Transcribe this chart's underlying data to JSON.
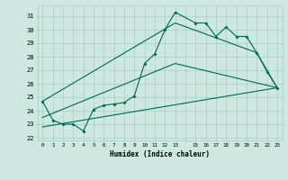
{
  "xlabel": "Humidex (Indice chaleur)",
  "bg_color": "#cce8e0",
  "grid_color": "#a8cec4",
  "line_color": "#006655",
  "xlim": [
    -0.5,
    23.5
  ],
  "ylim": [
    21.8,
    31.8
  ],
  "line1_x": [
    0,
    1,
    2,
    3,
    4,
    5,
    6,
    7,
    8,
    9,
    10,
    11,
    12,
    13,
    15,
    16,
    17,
    18,
    19,
    20,
    21,
    22,
    23
  ],
  "line1_y": [
    24.7,
    23.3,
    23.0,
    23.0,
    22.5,
    24.1,
    24.4,
    24.5,
    24.6,
    25.1,
    27.5,
    28.2,
    30.0,
    31.3,
    30.5,
    30.5,
    29.5,
    30.2,
    29.5,
    29.5,
    28.3,
    26.9,
    25.7
  ],
  "line2_x": [
    0,
    23
  ],
  "line2_y": [
    22.8,
    25.7
  ],
  "line3_x": [
    0,
    13,
    21,
    23
  ],
  "line3_y": [
    24.7,
    30.5,
    28.3,
    25.7
  ],
  "line4_x": [
    0,
    13,
    23
  ],
  "line4_y": [
    23.5,
    27.5,
    25.7
  ]
}
